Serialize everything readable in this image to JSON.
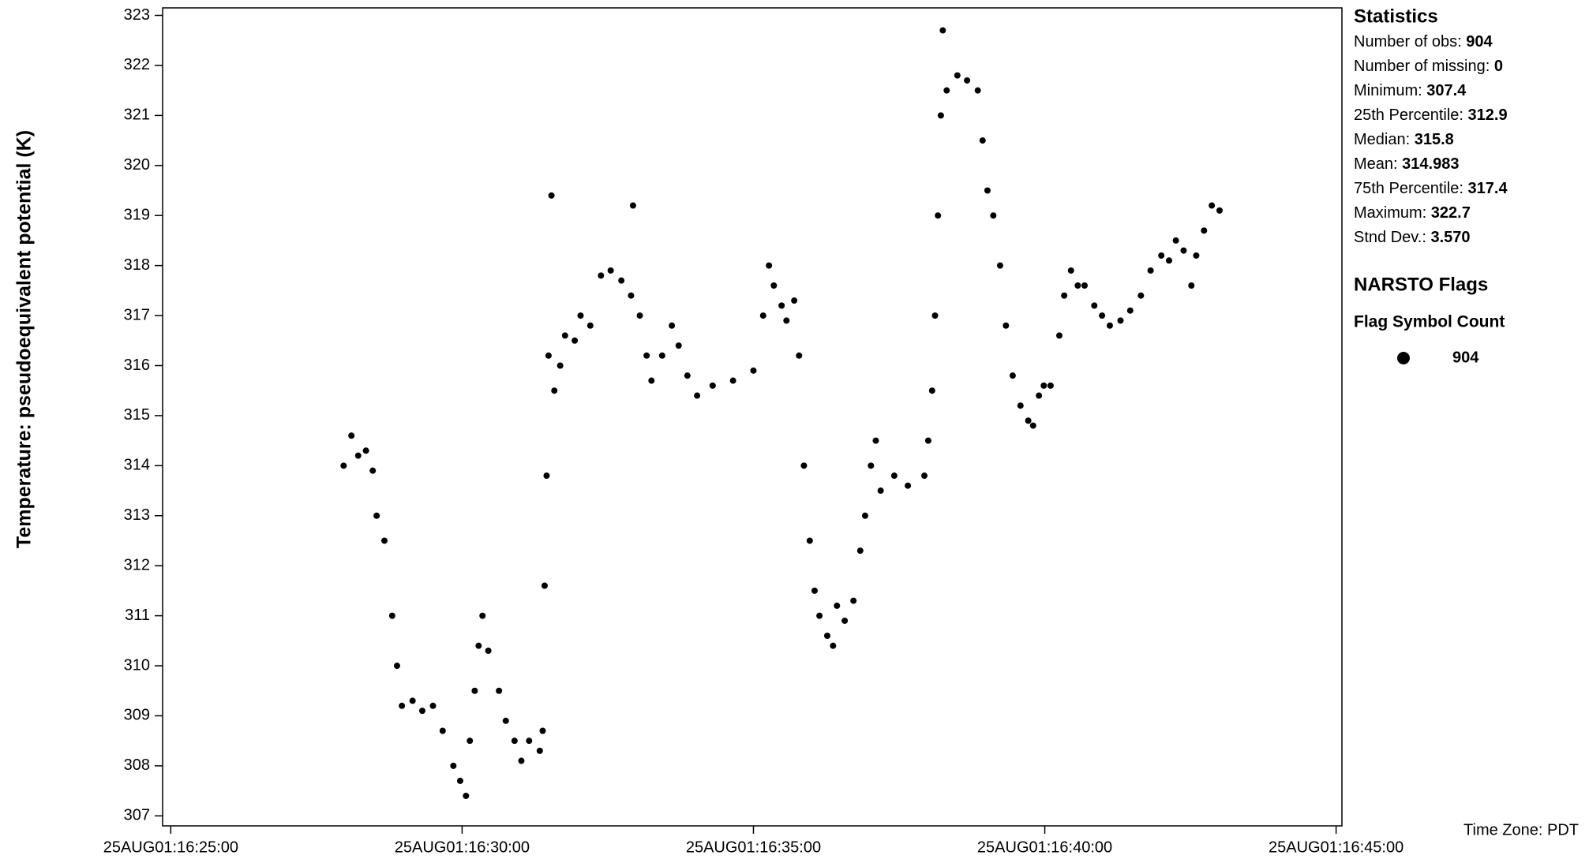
{
  "chart_data": {
    "type": "scatter",
    "y_label": "Temperature: pseudoequivalent potential (K)",
    "color": "#000000",
    "x": [
      59278,
      59286,
      59293,
      59301,
      59308,
      59312,
      59320,
      59328,
      59333,
      59338,
      59349,
      59359,
      59370,
      59380,
      59391,
      59398,
      59404,
      59408,
      59413,
      59417,
      59421,
      59427,
      59438,
      59445,
      59454,
      59461,
      59469,
      59480,
      59483,
      59485,
      59487,
      59489,
      59492,
      59495,
      59501,
      59506,
      59516,
      59522,
      59532,
      59543,
      59553,
      59564,
      59574,
      59576,
      59583,
      59590,
      59595,
      59606,
      59616,
      59623,
      59632,
      59642,
      59658,
      59679,
      59700,
      59710,
      59716,
      59721,
      59729,
      59734,
      59742,
      59747,
      59752,
      59758,
      59763,
      59768,
      59776,
      59782,
      59786,
      59794,
      59803,
      59810,
      59815,
      59821,
      59826,
      59831,
      59845,
      59859,
      59876,
      59880,
      59884,
      59887,
      59890,
      59893,
      59895,
      59899,
      59910,
      59920,
      59931,
      59936,
      59941,
      59947,
      59954,
      59960,
      59967,
      59975,
      59983,
      59988,
      59994,
      59999,
      60006,
      60015,
      60020,
      60027,
      60034,
      60041,
      60051,
      60059,
      60067,
      60078,
      60088,
      60099,
      60109,
      60120,
      60128,
      60135,
      60143,
      60151,
      60156,
      60164,
      60172,
      60180
    ],
    "values": [
      314.0,
      314.6,
      314.2,
      314.3,
      313.9,
      313.0,
      312.5,
      311.0,
      310.0,
      309.2,
      309.3,
      309.1,
      309.2,
      308.7,
      308.0,
      307.7,
      307.4,
      308.5,
      309.5,
      310.4,
      311.0,
      310.3,
      309.5,
      308.9,
      308.5,
      308.1,
      308.5,
      308.3,
      308.7,
      311.6,
      313.8,
      316.2,
      319.4,
      315.5,
      316.0,
      316.6,
      316.5,
      317.0,
      316.8,
      317.8,
      317.9,
      317.7,
      317.4,
      319.2,
      317.0,
      316.2,
      315.7,
      316.2,
      316.8,
      316.4,
      315.8,
      315.4,
      315.6,
      315.7,
      315.9,
      317.0,
      318.0,
      317.6,
      317.2,
      316.9,
      317.3,
      316.2,
      314.0,
      312.5,
      311.5,
      311.0,
      310.6,
      310.4,
      311.2,
      310.9,
      311.3,
      312.3,
      313.0,
      314.0,
      314.5,
      313.5,
      313.8,
      313.6,
      313.8,
      314.5,
      315.5,
      317.0,
      319.0,
      321.0,
      322.7,
      321.5,
      321.8,
      321.7,
      321.5,
      320.5,
      319.5,
      319.0,
      318.0,
      316.8,
      315.8,
      315.2,
      314.9,
      314.8,
      315.4,
      315.6,
      315.6,
      316.6,
      317.4,
      317.9,
      317.6,
      317.6,
      317.2,
      317.0,
      316.8,
      316.9,
      317.1,
      317.4,
      317.9,
      318.2,
      318.1,
      318.5,
      318.3,
      317.6,
      318.2,
      318.7,
      319.2,
      319.1
    ],
    "xlim": [
      59091.6,
      60306
    ],
    "xticks": [
      {
        "value": 59100,
        "label": "25AUG01:16:25:00"
      },
      {
        "value": 59400,
        "label": "25AUG01:16:30:00"
      },
      {
        "value": 59700,
        "label": "25AUG01:16:35:00"
      },
      {
        "value": 60000,
        "label": "25AUG01:16:40:00"
      },
      {
        "value": 60300,
        "label": "25AUG01:16:45:00"
      }
    ],
    "ylim": [
      306.8,
      323.15
    ],
    "yticks": [
      307,
      308,
      309,
      310,
      311,
      312,
      313,
      314,
      315,
      316,
      317,
      318,
      319,
      320,
      321,
      322,
      323
    ],
    "statistics_title": "Statistics",
    "statistics": [
      {
        "label": "Number of obs:",
        "value": "904"
      },
      {
        "label": "Number of missing:",
        "value": "0"
      },
      {
        "label": "Minimum:",
        "value": "307.4"
      },
      {
        "label": "25th Percentile:",
        "value": "312.9"
      },
      {
        "label": "Median:",
        "value": "315.8"
      },
      {
        "label": "Mean:",
        "value": "314.983"
      },
      {
        "label": "75th Percentile:",
        "value": "317.4"
      },
      {
        "label": "Maximum:",
        "value": "322.7"
      },
      {
        "label": "Stnd Dev.:",
        "value": "3.570"
      }
    ],
    "flags_title": "NARSTO Flags",
    "flags_header": "Flag Symbol Count",
    "flags": [
      {
        "count": "904"
      }
    ],
    "time_zone": "Time Zone: PDT"
  }
}
